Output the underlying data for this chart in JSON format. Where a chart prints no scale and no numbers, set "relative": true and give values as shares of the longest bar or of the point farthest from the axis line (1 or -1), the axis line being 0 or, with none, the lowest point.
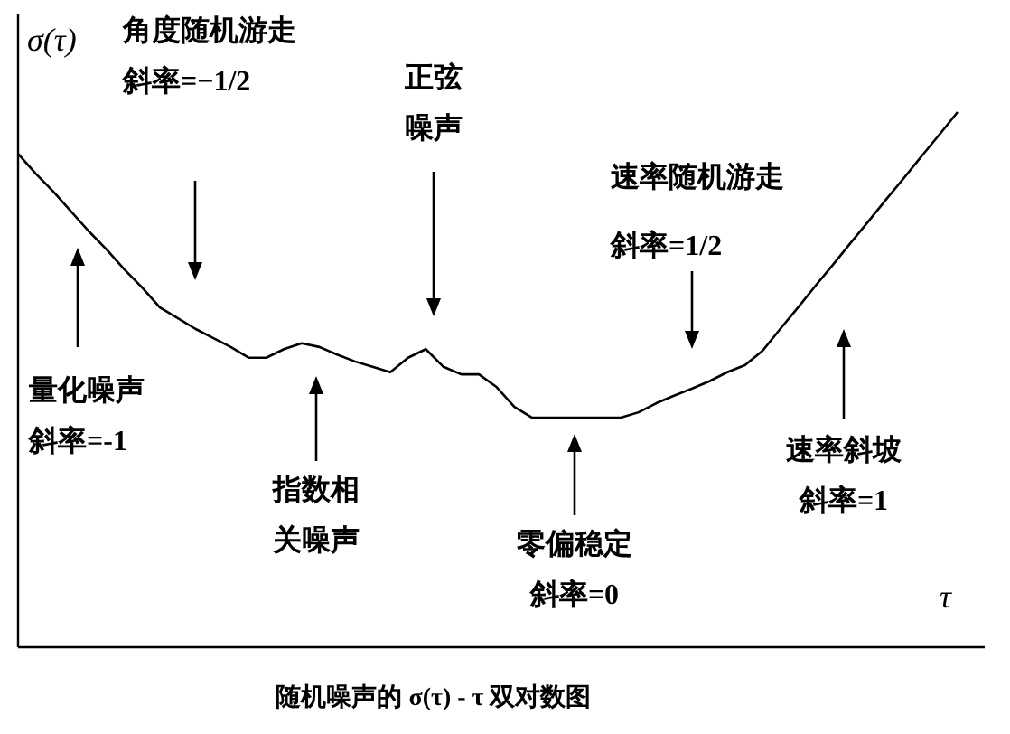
{
  "chart_data": {
    "type": "line",
    "relative": true,
    "xlabel": "τ",
    "ylabel": "σ(τ)",
    "categories": [
      null,
      null,
      null,
      null,
      null,
      null,
      null,
      null,
      null,
      null,
      null,
      null,
      null,
      null,
      null,
      null,
      null,
      null,
      null,
      null,
      null,
      null,
      null,
      null,
      null,
      null,
      null,
      null,
      null,
      null,
      null,
      null,
      null,
      null,
      null,
      null,
      null,
      null,
      null,
      null,
      null,
      null,
      null,
      null,
      null,
      null,
      null,
      null,
      null,
      null,
      null,
      null,
      null,
      null
    ],
    "series": [
      {
        "color": "#000000",
        "values": [
          0.922,
          0.885,
          0.851,
          0.814,
          0.777,
          0.743,
          0.706,
          0.672,
          0.635,
          0.615,
          0.595,
          0.578,
          0.561,
          0.541,
          0.541,
          0.557,
          0.568,
          0.561,
          0.547,
          0.534,
          0.524,
          0.514,
          0.541,
          0.557,
          0.524,
          0.51,
          0.51,
          0.486,
          0.449,
          0.429,
          0.429,
          0.429,
          0.429,
          0.429,
          0.429,
          0.439,
          0.456,
          0.47,
          0.483,
          0.497,
          0.514,
          0.527,
          0.554,
          0.595,
          0.635,
          0.676,
          0.716,
          0.757,
          0.797,
          0.838,
          0.878,
          0.919,
          0.959,
          1
        ]
      }
    ],
    "annotations": [
      "角度随机游走",
      "斜率=−1/2",
      "正弦",
      "噪声",
      "速率随机游走",
      "斜率=1/2",
      "量化噪声",
      "斜率=-1",
      "指数相",
      "关噪声",
      "零偏稳定",
      "斜率=0",
      "速率斜坡",
      "斜率=1",
      "随机噪声的 σ(τ) - τ 双对数图"
    ]
  }
}
